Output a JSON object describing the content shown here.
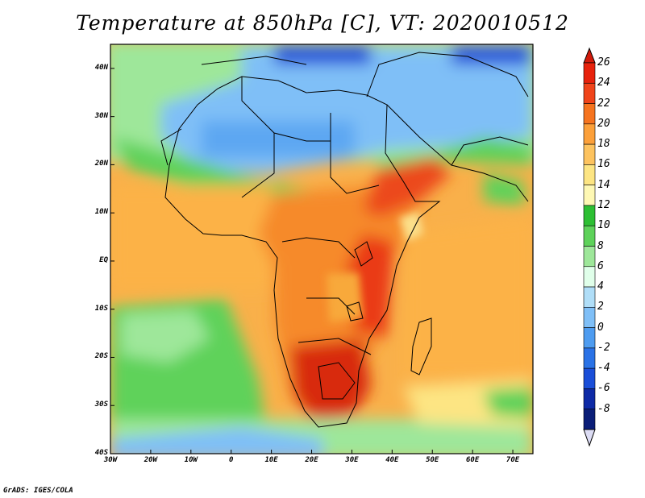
{
  "title": "Temperature at 850hPa [C], VT: 2020010512",
  "credit": "GrADS: IGES/COLA",
  "lat_labels": [
    "40N",
    "30N",
    "20N",
    "10N",
    "EQ",
    "10S",
    "20S",
    "30S",
    "40S"
  ],
  "lon_labels": [
    "30W",
    "20W",
    "10W",
    "0",
    "10E",
    "20E",
    "30E",
    "40E",
    "50E",
    "60E",
    "70E"
  ],
  "colorbar": {
    "labels": [
      "26",
      "24",
      "22",
      "20",
      "18",
      "16",
      "14",
      "12",
      "10",
      "8",
      "6",
      "4",
      "2",
      "0",
      "-2",
      "-4",
      "-6",
      "-8"
    ],
    "colors": [
      "#e7220c",
      "#f0441a",
      "#f6741f",
      "#fca03a",
      "#fdc35f",
      "#fde583",
      "#fef8b4",
      "#2dbf33",
      "#5ed25a",
      "#9ee79a",
      "#e0ffea",
      "#b0def8",
      "#7fbff7",
      "#4e9cf0",
      "#2a72e6",
      "#1a4ed8",
      "#0e2aa6",
      "#0b1e78"
    ],
    "min_cap_color": "#dcdcf4",
    "max_cap_color": "#d21a0a"
  },
  "chart_data": {
    "type": "heatmap",
    "title": "Temperature at 850hPa [C], VT: 2020010512",
    "variable": "Temperature at 850hPa",
    "units": "C",
    "valid_time": "2020010512",
    "lon_range": [
      -30,
      75
    ],
    "lat_range": [
      -40,
      45
    ],
    "lon_ticks": [
      -30,
      -20,
      -10,
      0,
      10,
      20,
      30,
      40,
      50,
      60,
      70
    ],
    "lat_ticks": [
      40,
      30,
      20,
      10,
      0,
      -10,
      -20,
      -30,
      -40
    ],
    "contour_levels": [
      -8,
      -6,
      -4,
      -2,
      0,
      2,
      4,
      6,
      8,
      10,
      12,
      14,
      16,
      18,
      20,
      22,
      24,
      26
    ]
  }
}
